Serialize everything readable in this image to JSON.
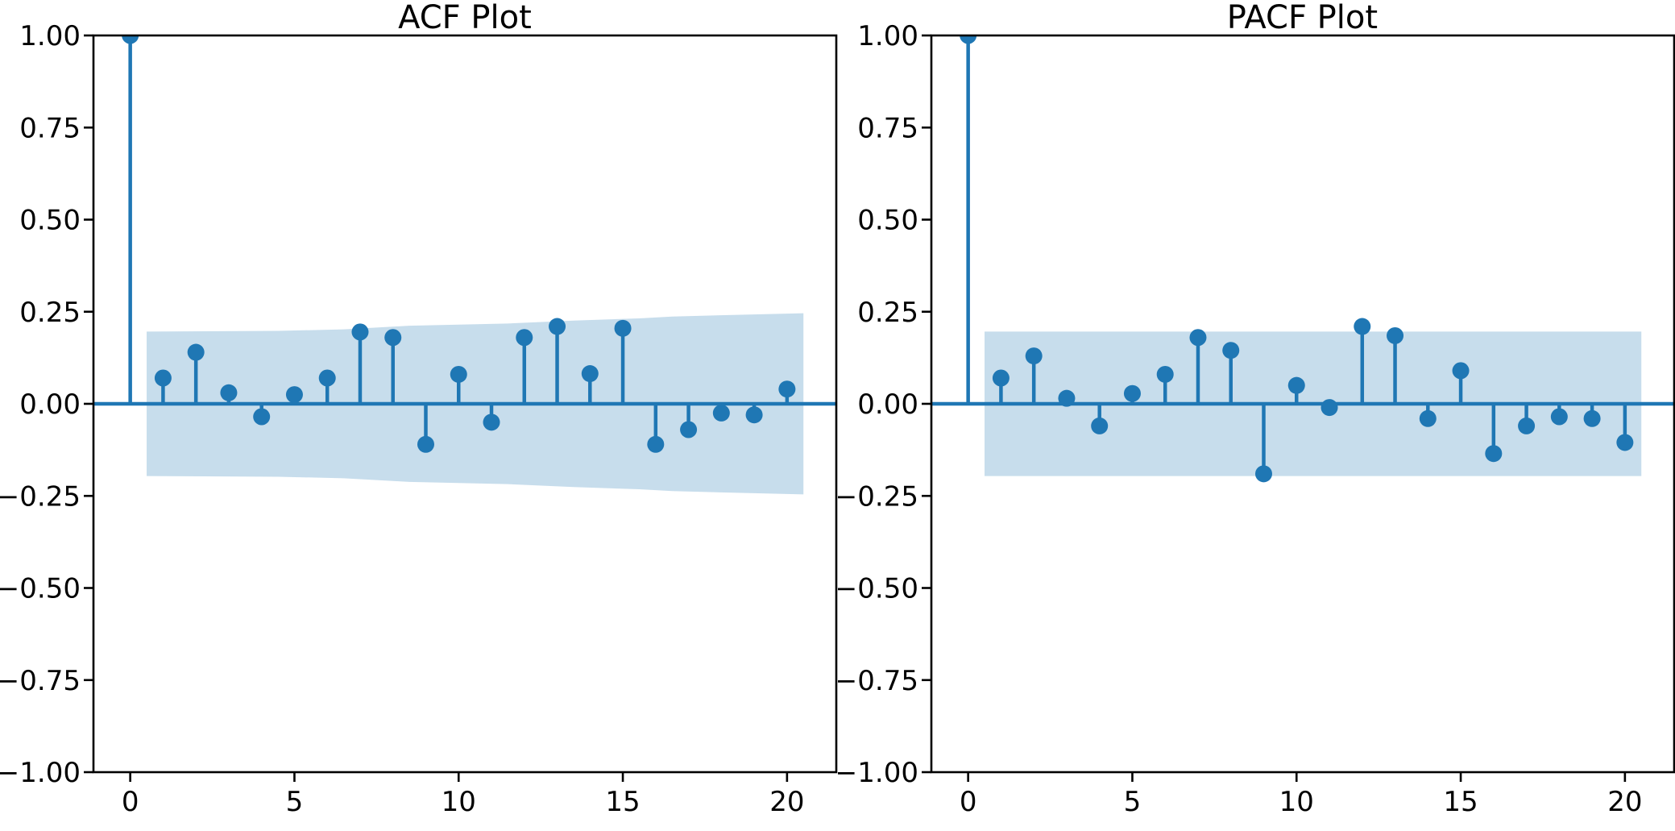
{
  "figure": {
    "background": "#ffffff",
    "grid": false,
    "legend": null
  },
  "colors": {
    "stem": "#1f77b4",
    "marker": "#1f77b4",
    "zero_line": "#1f77b4",
    "band_fill": "#1f77b4",
    "band_opacity": 0.25,
    "axis": "#000000",
    "text": "#000000"
  },
  "chart_data": [
    {
      "type": "stem",
      "title": "ACF Plot",
      "xlabel": "",
      "ylabel": "",
      "xlim": [
        -1.12,
        21.5
      ],
      "ylim": [
        -1.0,
        1.0
      ],
      "xticks": [
        0,
        5,
        10,
        15,
        20
      ],
      "xtick_labels": [
        "0",
        "5",
        "10",
        "15",
        "20"
      ],
      "yticks": [
        1.0,
        0.75,
        0.5,
        0.25,
        0.0,
        -0.25,
        -0.5,
        -0.75,
        -1.0
      ],
      "ytick_labels": [
        "1.00",
        "0.75",
        "0.50",
        "0.25",
        "0.00",
        "−0.25",
        "−0.50",
        "−0.75",
        "−1.00"
      ],
      "lags": [
        0,
        1,
        2,
        3,
        4,
        5,
        6,
        7,
        8,
        9,
        10,
        11,
        12,
        13,
        14,
        15,
        16,
        17,
        18,
        19,
        20
      ],
      "values": [
        1.0,
        0.07,
        0.14,
        0.03,
        -0.035,
        0.025,
        0.07,
        0.195,
        0.18,
        -0.11,
        0.08,
        -0.05,
        0.18,
        0.21,
        0.082,
        0.205,
        -0.11,
        -0.07,
        -0.025,
        -0.03,
        0.04
      ],
      "conf_band": {
        "symmetric": true,
        "x": [
          0.5,
          4.5,
          6.5,
          7.5,
          8.5,
          11.5,
          13.5,
          15.5,
          16.5,
          20.5
        ],
        "upper": [
          0.196,
          0.198,
          0.202,
          0.207,
          0.212,
          0.218,
          0.226,
          0.232,
          0.237,
          0.246
        ]
      }
    },
    {
      "type": "stem",
      "title": "PACF Plot",
      "xlabel": "",
      "ylabel": "",
      "xlim": [
        -1.12,
        21.5
      ],
      "ylim": [
        -1.0,
        1.0
      ],
      "xticks": [
        0,
        5,
        10,
        15,
        20
      ],
      "xtick_labels": [
        "0",
        "5",
        "10",
        "15",
        "20"
      ],
      "yticks": [
        1.0,
        0.75,
        0.5,
        0.25,
        0.0,
        -0.25,
        -0.5,
        -0.75,
        -1.0
      ],
      "ytick_labels": [
        "1.00",
        "0.75",
        "0.50",
        "0.25",
        "0.00",
        "−0.25",
        "−0.50",
        "−0.75",
        "−1.00"
      ],
      "lags": [
        0,
        1,
        2,
        3,
        4,
        5,
        6,
        7,
        8,
        9,
        10,
        11,
        12,
        13,
        14,
        15,
        16,
        17,
        18,
        19,
        20
      ],
      "values": [
        1.0,
        0.07,
        0.13,
        0.015,
        -0.06,
        0.028,
        0.08,
        0.18,
        0.145,
        -0.19,
        0.05,
        -0.01,
        0.21,
        0.185,
        -0.04,
        0.09,
        -0.135,
        -0.06,
        -0.035,
        -0.04,
        -0.105
      ],
      "conf_band": {
        "symmetric": true,
        "x": [
          0.5,
          20.5
        ],
        "upper": [
          0.196,
          0.196
        ]
      }
    }
  ]
}
